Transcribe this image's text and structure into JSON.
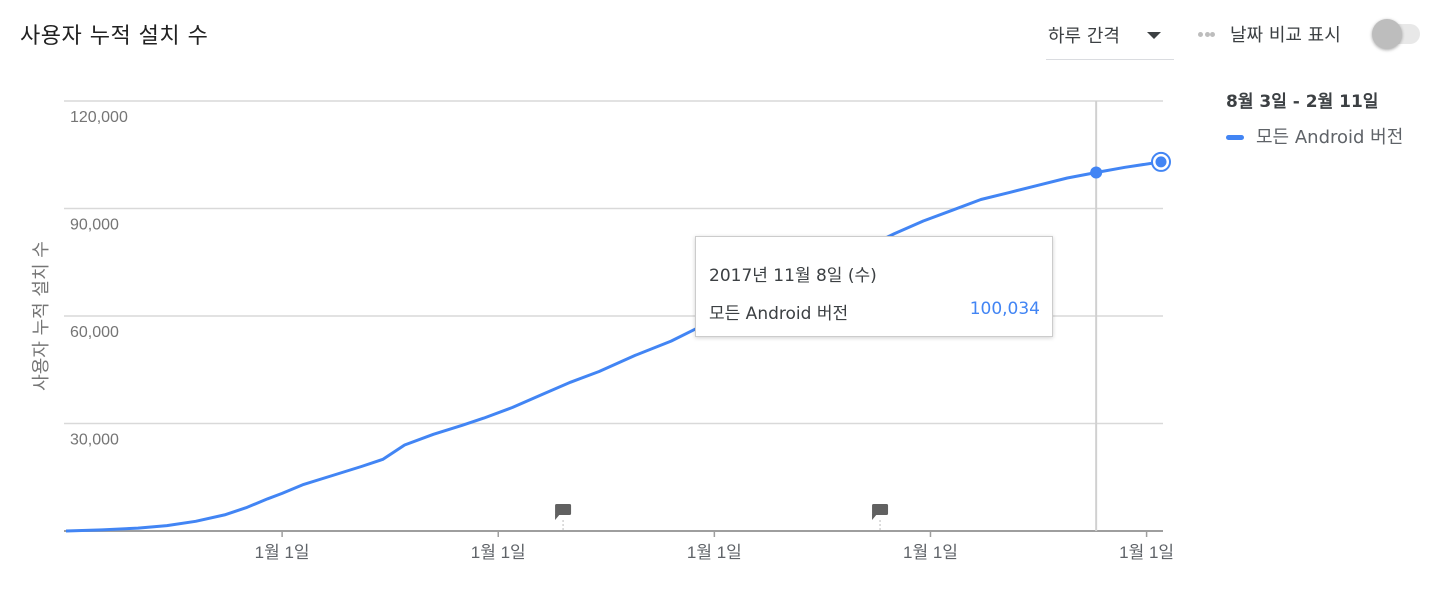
{
  "header": {
    "title": "사용자 누적 설치 수",
    "interval_label": "하루 간격",
    "compare_label": "날짜 비교 표시"
  },
  "legend": {
    "date_range": "8월 3일 - 2월 11일",
    "series_name": "모든 Android 버전"
  },
  "tooltip": {
    "date": "2017년 11월 8일 (수)",
    "series": "모든 Android 버전",
    "value": "100,034"
  },
  "colors": {
    "series": "#4285f4",
    "grid": "#d9d9d9",
    "axis": "#9e9e9e"
  },
  "icons": {
    "interval": "caret-down-icon",
    "compare": "dots-icon",
    "annotation": "comment-flag-icon"
  },
  "chart_data": {
    "type": "line",
    "ylabel": "사용자 누적 설치 수",
    "ylim": [
      0,
      120000
    ],
    "yticks": [
      {
        "value": 30000,
        "label": "30,000"
      },
      {
        "value": 60000,
        "label": "60,000"
      },
      {
        "value": 90000,
        "label": "90,000"
      },
      {
        "value": 120000,
        "label": "120,000"
      }
    ],
    "xticks": [
      "1월 1일",
      "1월 1일",
      "1월 1일",
      "1월 1일",
      "1월 1일"
    ],
    "xtick_index": [
      30,
      60,
      90,
      120,
      150
    ],
    "xlim_index": [
      0,
      152
    ],
    "annotation_index": [
      69,
      113
    ],
    "series": [
      {
        "name": "모든 Android 버전",
        "points": [
          [
            0,
            0
          ],
          [
            5,
            300
          ],
          [
            10,
            800
          ],
          [
            14,
            1500
          ],
          [
            18,
            2700
          ],
          [
            22,
            4500
          ],
          [
            25,
            6500
          ],
          [
            28,
            9000
          ],
          [
            30,
            10500
          ],
          [
            33,
            13000
          ],
          [
            37,
            15500
          ],
          [
            41,
            18000
          ],
          [
            44,
            20000
          ],
          [
            47,
            24000
          ],
          [
            51,
            27000
          ],
          [
            55,
            29500
          ],
          [
            58,
            31500
          ],
          [
            62,
            34500
          ],
          [
            66,
            38000
          ],
          [
            70,
            41500
          ],
          [
            74,
            44500
          ],
          [
            79,
            49000
          ],
          [
            84,
            53000
          ],
          [
            88,
            57000
          ],
          [
            92,
            60000
          ],
          [
            96,
            64000
          ],
          [
            100,
            68000
          ],
          [
            104,
            72000
          ],
          [
            107,
            75000
          ],
          [
            111,
            79000
          ],
          [
            115,
            83000
          ],
          [
            119,
            86500
          ],
          [
            123,
            89500
          ],
          [
            127,
            92500
          ],
          [
            131,
            94500
          ],
          [
            135,
            96500
          ],
          [
            139,
            98500
          ],
          [
            143,
            100034
          ],
          [
            147,
            101500
          ],
          [
            152,
            103000
          ]
        ]
      }
    ],
    "highlight_index": 143,
    "highlight_value": 100034,
    "last_value": 103000
  }
}
